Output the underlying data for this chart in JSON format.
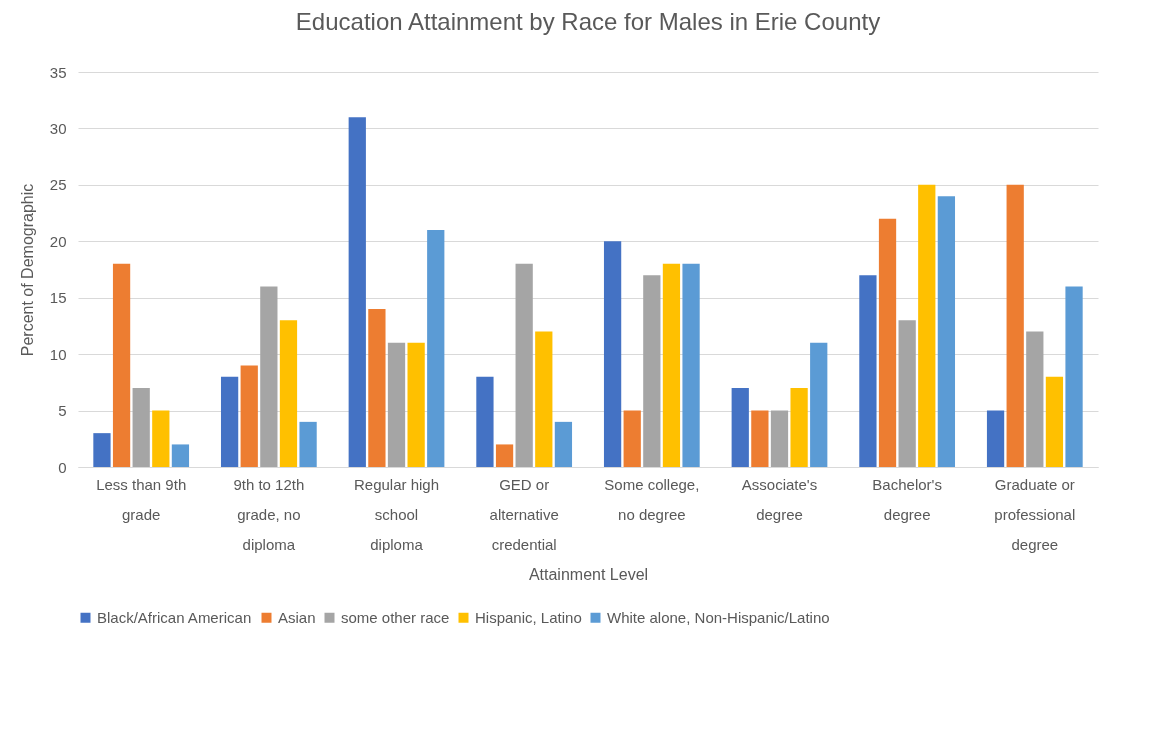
{
  "chart_data": {
    "type": "bar",
    "title": "Education Attainment by Race for Males in Erie County",
    "xlabel": "Attainment Level",
    "ylabel": "Percent of Demographic",
    "categories": [
      "Less than 9th grade",
      "9th to 12th grade, no diploma",
      "Regular high school diploma",
      "GED or alternative credential",
      "Some college, no degree",
      "Associate's degree",
      "Bachelor's degree",
      "Graduate or professional degree"
    ],
    "series": [
      {
        "name": "Black/African American",
        "color": "#4472c4",
        "values": [
          3,
          8,
          31,
          8,
          20,
          7,
          17,
          5
        ]
      },
      {
        "name": "Asian",
        "color": "#ed7d31",
        "values": [
          18,
          9,
          14,
          2,
          5,
          5,
          22,
          25
        ]
      },
      {
        "name": "some other race",
        "color": "#a5a5a5",
        "values": [
          7,
          16,
          11,
          18,
          17,
          5,
          13,
          12
        ]
      },
      {
        "name": "Hispanic, Latino",
        "color": "#ffc000",
        "values": [
          5,
          13,
          11,
          12,
          18,
          7,
          25,
          8
        ]
      },
      {
        "name": "White alone, Non-Hispanic/Latino",
        "color": "#5b9bd5",
        "values": [
          2,
          4,
          21,
          4,
          18,
          11,
          24,
          16
        ]
      }
    ],
    "ylim": [
      0,
      35
    ],
    "yticks": [
      0,
      5,
      10,
      15,
      20,
      25,
      30,
      35
    ],
    "grid": "y",
    "legend": "bottom"
  }
}
